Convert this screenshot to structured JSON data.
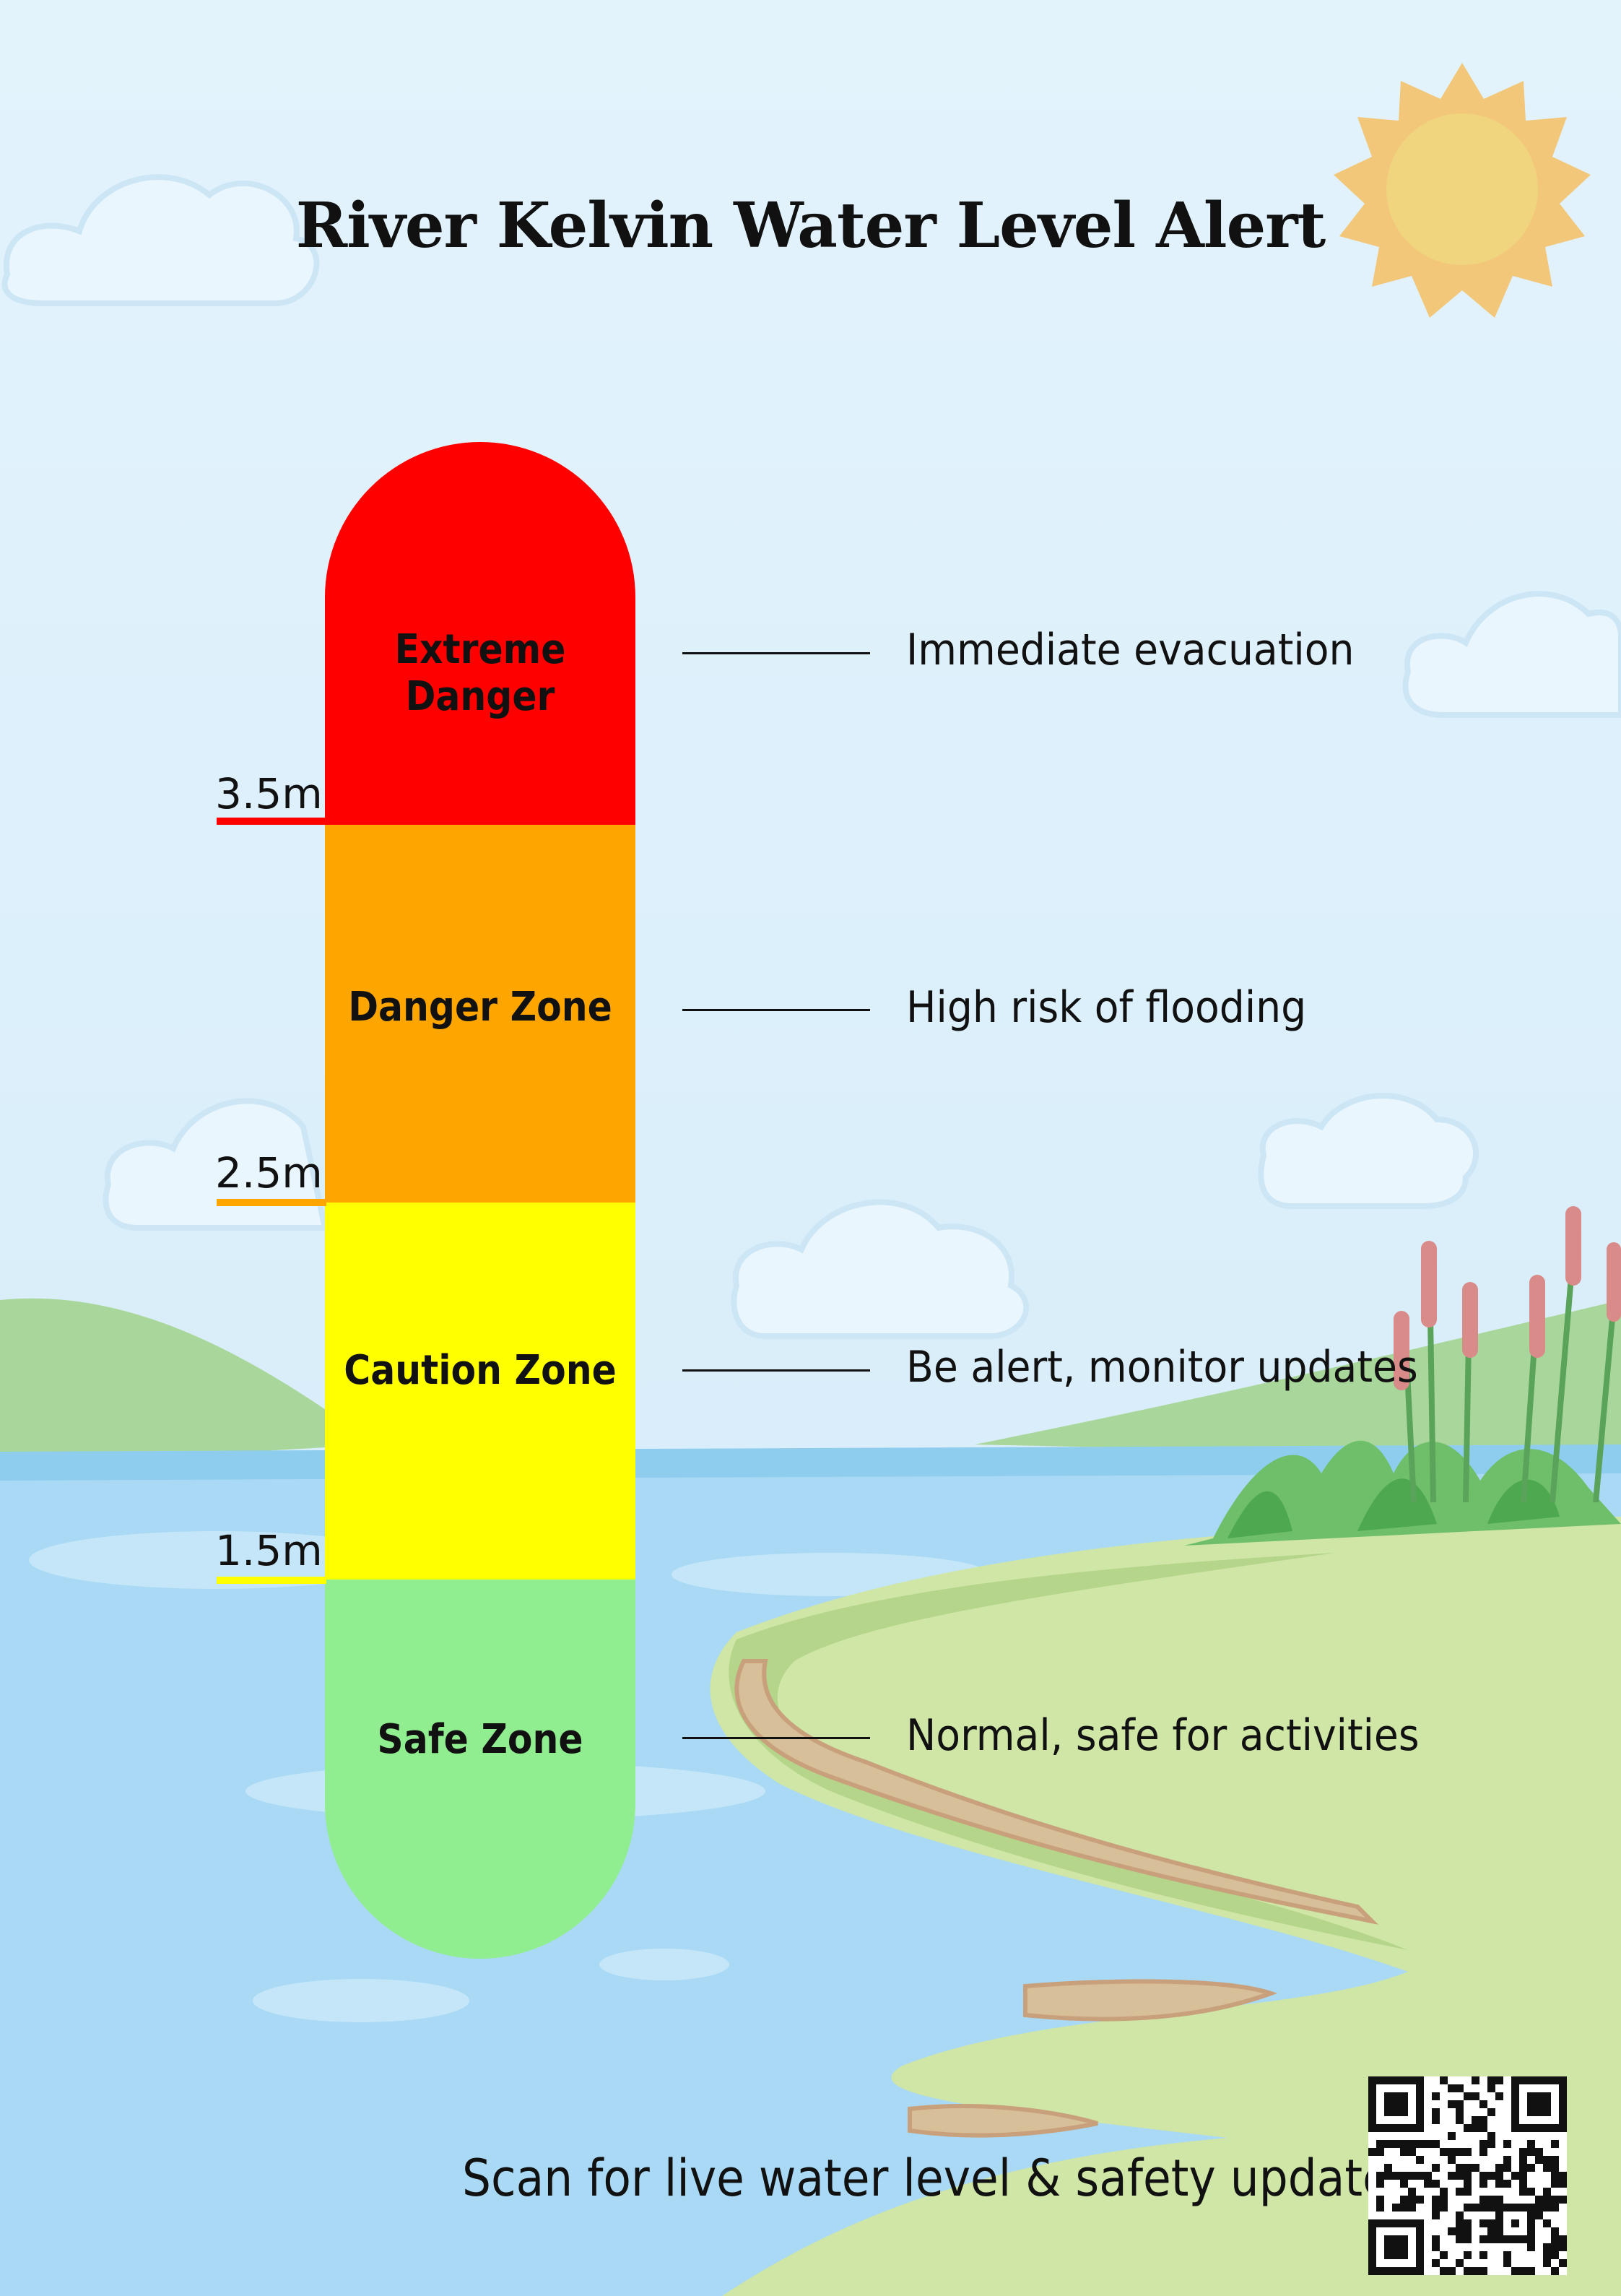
{
  "title": "River Kelvin Water Level Alert",
  "zones": [
    {
      "name": "Extreme Danger",
      "description": "Immediate evacuation",
      "color": "#ff0000"
    },
    {
      "name": "Danger Zone",
      "description": "High risk of flooding",
      "color": "#ffa500"
    },
    {
      "name": "Caution Zone",
      "description": "Be alert, monitor updates",
      "color": "#ffff00"
    },
    {
      "name": "Safe Zone",
      "description": "Normal, safe for activities",
      "color": "#90ee90"
    }
  ],
  "thresholds": [
    {
      "label": "3.5m",
      "color": "#ff0000"
    },
    {
      "label": "2.5m",
      "color": "#ffa500"
    },
    {
      "label": "1.5m",
      "color": "#ffff00"
    }
  ],
  "cta": "Scan for live water level & safety updates",
  "qr_icon": "qr-code-icon"
}
